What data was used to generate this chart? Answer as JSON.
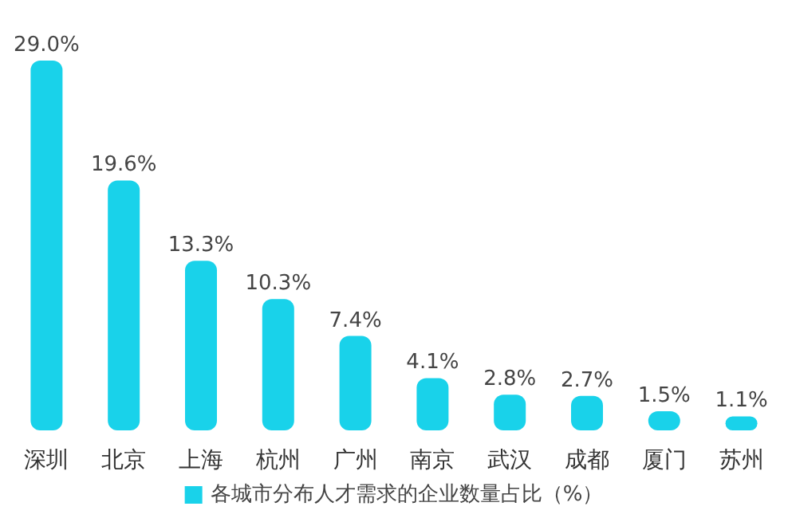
{
  "chart_data": {
    "type": "bar",
    "categories": [
      "深圳",
      "北京",
      "上海",
      "杭州",
      "广州",
      "南京",
      "武汉",
      "成都",
      "厦门",
      "苏州"
    ],
    "series": [
      {
        "name": "各城市分布人才需求的企业数量占比（%）",
        "color": "#19d2ea",
        "values": [
          29.0,
          19.6,
          13.3,
          10.3,
          7.4,
          4.1,
          2.8,
          2.7,
          1.5,
          1.1
        ],
        "value_labels": [
          "29.0%",
          "19.6%",
          "13.3%",
          "10.3%",
          "7.4%",
          "4.1%",
          "2.8%",
          "2.7%",
          "1.5%",
          "1.1%"
        ]
      }
    ],
    "legend": "bottom"
  }
}
